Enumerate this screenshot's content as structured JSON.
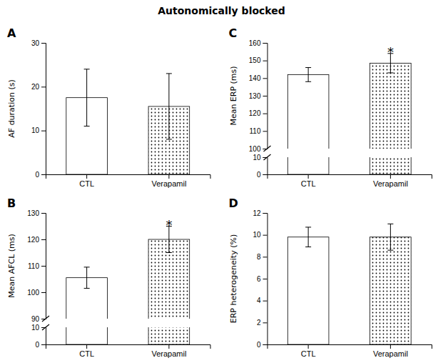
{
  "title": "Autonomically blocked",
  "chart_data": [
    {
      "type": "bar",
      "title": "A",
      "ylabel": "AF duration (s)",
      "categories": [
        "CTL",
        "Verapamil"
      ],
      "values": [
        17.5,
        15.5
      ],
      "errors": [
        6.5,
        7.5
      ],
      "ylim": [
        0,
        30
      ],
      "yticks": [
        0,
        10,
        20,
        30
      ],
      "annotations": []
    },
    {
      "type": "bar",
      "title": "B",
      "ylabel": "Mean AFCL (ms)",
      "categories": [
        "CTL",
        "Verapamil"
      ],
      "values": [
        105.5,
        120.0
      ],
      "errors": [
        4.0,
        5.0
      ],
      "ylim": [
        90,
        130
      ],
      "yticks": [
        90,
        100,
        110,
        120,
        130
      ],
      "break_ylim": [
        0,
        10
      ],
      "break_yticks": [
        0,
        10
      ],
      "annotations": [
        {
          "x": "Verapamil",
          "text": "*"
        }
      ]
    },
    {
      "type": "bar",
      "title": "C",
      "ylabel": "Mean ERP (ms)",
      "categories": [
        "CTL",
        "Verapamil"
      ],
      "values": [
        142.0,
        148.5
      ],
      "errors": [
        4.0,
        5.5
      ],
      "ylim": [
        100,
        160
      ],
      "yticks": [
        100,
        110,
        120,
        130,
        140,
        150,
        160
      ],
      "break_ylim": [
        0,
        10
      ],
      "break_yticks": [
        0,
        10
      ],
      "annotations": [
        {
          "x": "Verapamil",
          "text": "*"
        }
      ]
    },
    {
      "type": "bar",
      "title": "D",
      "ylabel": "ERP heterogeneity (%)",
      "categories": [
        "CTL",
        "Verapamil"
      ],
      "values": [
        9.8,
        9.8
      ],
      "errors": [
        0.9,
        1.2
      ],
      "ylim": [
        0,
        12
      ],
      "yticks": [
        0,
        2,
        4,
        6,
        8,
        10,
        12
      ],
      "annotations": []
    }
  ]
}
